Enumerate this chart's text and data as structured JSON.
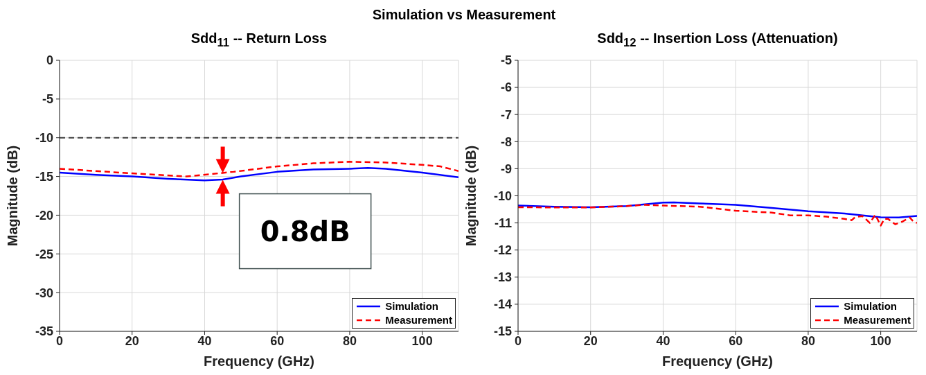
{
  "chart_data": [
    {
      "type": "line",
      "title": "Sdd$_{11}$ -- Return Loss",
      "xlabel": "Frequency (GHz)",
      "ylabel": "Magnitude (dB)",
      "xlim": [
        0,
        110
      ],
      "xticks": [
        0,
        20,
        40,
        60,
        80,
        100
      ],
      "ylim": [
        -35,
        0
      ],
      "yticks": [
        -35,
        -30,
        -25,
        -20,
        -15,
        -10,
        -5,
        0
      ],
      "grid": true,
      "legend": "bottom right",
      "marker": "none",
      "annotations": [
        "Simulation vs Measurement",
        {
          "text": "0.8dB",
          "x": 45,
          "y": -15
        }
      ],
      "ref_lines": [
        {
          "axis": "y",
          "value": -10,
          "color": "#404040",
          "line_style": "dashed"
        }
      ],
      "series": [
        {
          "name": "Simulation",
          "color": "#0000ff",
          "line_style": "solid",
          "x": [
            0,
            10,
            20,
            30,
            40,
            45,
            50,
            60,
            70,
            80,
            85,
            90,
            100,
            110
          ],
          "values": [
            -14.5,
            -14.8,
            -15.0,
            -15.3,
            -15.5,
            -15.4,
            -15.0,
            -14.4,
            -14.1,
            -14.0,
            -13.9,
            -14.0,
            -14.5,
            -15.1
          ]
        },
        {
          "name": "Measurement",
          "color": "#ff0000",
          "line_style": "dashed",
          "x": [
            0,
            10,
            20,
            35,
            48,
            60,
            70,
            80,
            90,
            100,
            105,
            110
          ],
          "values": [
            -14.0,
            -14.3,
            -14.6,
            -15.0,
            -14.4,
            -13.7,
            -13.3,
            -13.1,
            -13.2,
            -13.5,
            -13.7,
            -14.3
          ]
        }
      ]
    },
    {
      "type": "line",
      "title": "Sdd$_{12}$ -- Insertion Loss (Attenuation)",
      "xlabel": "Frequency (GHz)",
      "ylabel": "Magnitude (dB)",
      "xlim": [
        0,
        110
      ],
      "xticks": [
        0,
        20,
        40,
        60,
        80,
        100
      ],
      "ylim": [
        -15,
        -5
      ],
      "yticks": [
        -15,
        -14,
        -13,
        -12,
        -11,
        -10,
        -9,
        -8,
        -7,
        -6,
        -5
      ],
      "grid": true,
      "legend": "bottom right",
      "marker": "none",
      "series": [
        {
          "name": "Simulation",
          "color": "#0000ff",
          "line_style": "solid",
          "x": [
            0,
            10,
            20,
            30,
            40,
            43,
            50,
            60,
            70,
            80,
            90,
            100,
            105,
            110
          ],
          "values": [
            -10.36,
            -10.4,
            -10.42,
            -10.38,
            -10.25,
            -10.24,
            -10.28,
            -10.33,
            -10.45,
            -10.57,
            -10.65,
            -10.79,
            -10.8,
            -10.74
          ]
        },
        {
          "name": "Measurement",
          "color": "#ff0000",
          "line_style": "dashed",
          "x": [
            0,
            10,
            20,
            30,
            35,
            40,
            50,
            60,
            70,
            75,
            80,
            85,
            90,
            92,
            93,
            95,
            97,
            98.5,
            100,
            101,
            102,
            104,
            106,
            108,
            109,
            110
          ],
          "values": [
            -10.42,
            -10.43,
            -10.43,
            -10.38,
            -10.33,
            -10.36,
            -10.4,
            -10.55,
            -10.62,
            -10.72,
            -10.72,
            -10.77,
            -10.85,
            -10.9,
            -10.78,
            -10.75,
            -11.0,
            -10.7,
            -11.1,
            -10.85,
            -10.85,
            -11.05,
            -10.95,
            -10.8,
            -10.95,
            -11.0
          ]
        }
      ]
    }
  ]
}
